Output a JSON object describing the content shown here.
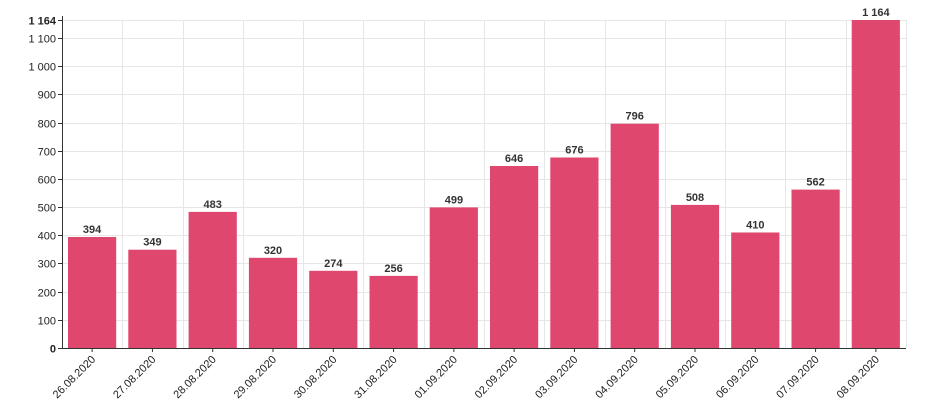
{
  "chart_data": {
    "type": "bar",
    "categories": [
      "26.08.2020",
      "27.08.2020",
      "28.08.2020",
      "29.08.2020",
      "30.08.2020",
      "31.08.2020",
      "01.09.2020",
      "02.09.2020",
      "03.09.2020",
      "04.09.2020",
      "05.09.2020",
      "06.09.2020",
      "07.09.2020",
      "08.09.2020"
    ],
    "values": [
      394,
      349,
      483,
      320,
      274,
      256,
      499,
      646,
      676,
      796,
      508,
      410,
      562,
      1164
    ],
    "value_labels": [
      "394",
      "349",
      "483",
      "320",
      "274",
      "256",
      "499",
      "646",
      "676",
      "796",
      "508",
      "410",
      "562",
      "1 164"
    ],
    "y_ticks": [
      0,
      100,
      200,
      300,
      400,
      500,
      600,
      700,
      800,
      900,
      1000,
      1100
    ],
    "y_tick_labels": [
      "0",
      "100",
      "200",
      "300",
      "400",
      "500",
      "600",
      "700",
      "800",
      "900",
      "1 000",
      "1 100"
    ],
    "y_max_label": "1 164",
    "ylim": [
      0,
      1164
    ],
    "grid": true,
    "bar_color": "#e0476f",
    "title": "",
    "xlabel": "",
    "ylabel": ""
  }
}
